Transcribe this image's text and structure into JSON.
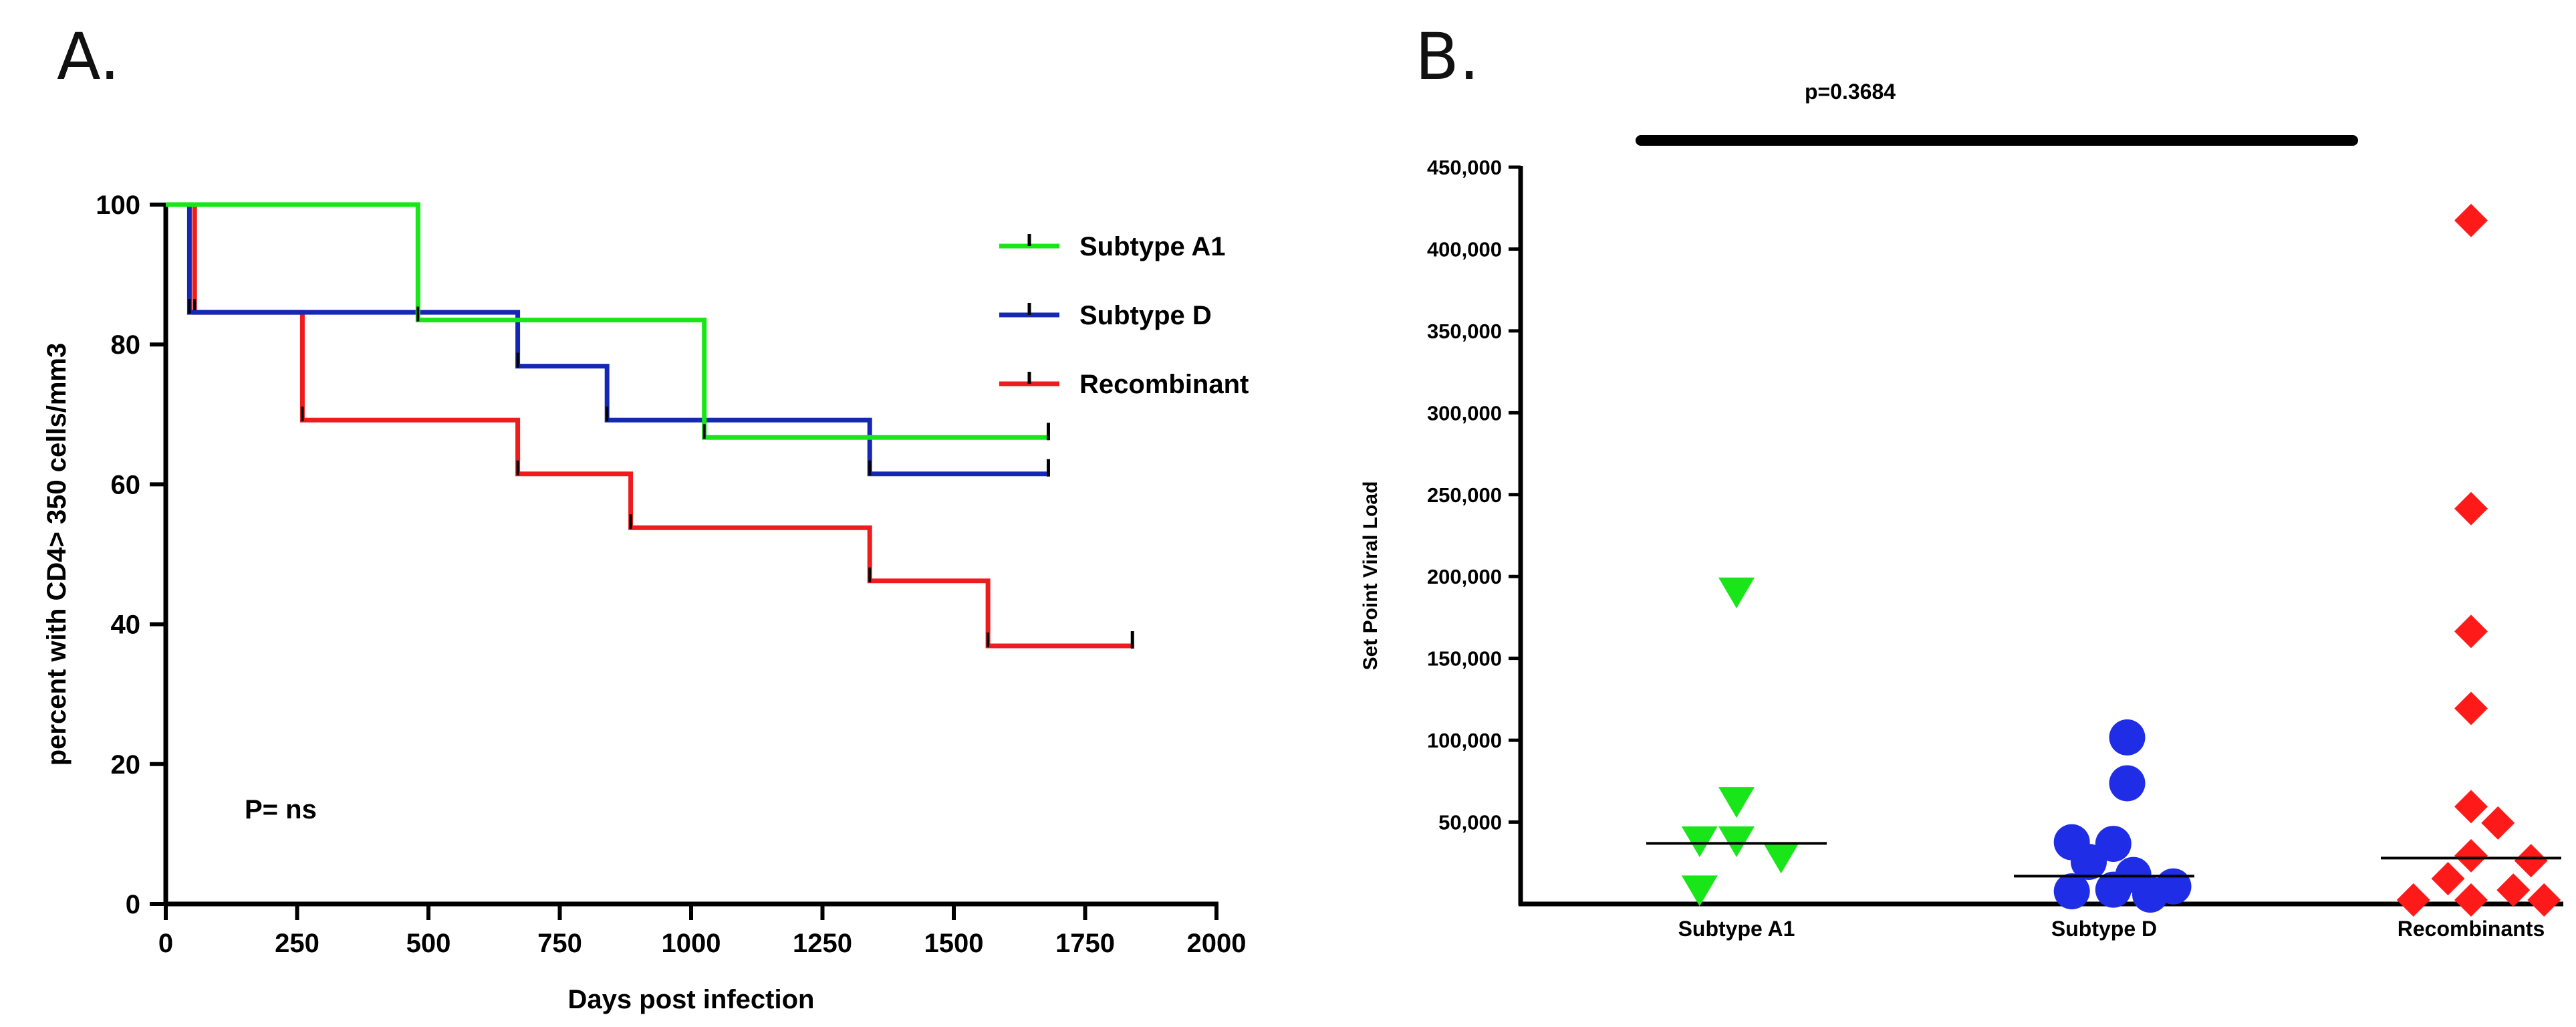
{
  "panels": {
    "a_label": "A.",
    "b_label": "B."
  },
  "chart_data": [
    {
      "type": "line",
      "subtype": "kaplan-meier step",
      "panel": "A",
      "title": "",
      "xlabel": "Days post infection",
      "ylabel": "percent with CD4> 350 cells/mm3",
      "xlim": [
        0,
        2000
      ],
      "ylim": [
        0,
        100
      ],
      "xticks": [
        0,
        250,
        500,
        750,
        1000,
        1250,
        1500,
        1750,
        2000
      ],
      "yticks": [
        0,
        20,
        40,
        60,
        80,
        100
      ],
      "grid": false,
      "legend_position": "top-right",
      "annotation": "P= ns",
      "series": [
        {
          "name": "Subtype A1",
          "color": "#19e619",
          "steps": [
            [
              0,
              100
            ],
            [
              480,
              100
            ],
            [
              480,
              83.5
            ],
            [
              1025,
              83.5
            ],
            [
              1025,
              66.7
            ],
            [
              1680,
              66.7
            ]
          ],
          "censor": [
            [
              1680,
              66.7
            ]
          ]
        },
        {
          "name": "Subtype D",
          "color": "#1428b4",
          "steps": [
            [
              0,
              100
            ],
            [
              45,
              100
            ],
            [
              45,
              84.6
            ],
            [
              670,
              84.6
            ],
            [
              670,
              76.9
            ],
            [
              840,
              76.9
            ],
            [
              840,
              69.2
            ],
            [
              1340,
              69.2
            ],
            [
              1340,
              61.5
            ],
            [
              1680,
              61.5
            ]
          ],
          "censor": [
            [
              1680,
              61.5
            ]
          ]
        },
        {
          "name": "Recombinant",
          "color": "#ee1c1c",
          "steps": [
            [
              0,
              100
            ],
            [
              55,
              100
            ],
            [
              55,
              84.6
            ],
            [
              260,
              84.6
            ],
            [
              260,
              69.2
            ],
            [
              670,
              69.2
            ],
            [
              670,
              61.5
            ],
            [
              885,
              61.5
            ],
            [
              885,
              53.8
            ],
            [
              1340,
              53.8
            ],
            [
              1340,
              46.2
            ],
            [
              1565,
              46.2
            ],
            [
              1565,
              36.9
            ],
            [
              1840,
              36.9
            ]
          ],
          "censor": [
            [
              1840,
              36.9
            ]
          ]
        }
      ]
    },
    {
      "type": "scatter",
      "subtype": "dot plot with median lines",
      "panel": "B",
      "title": "",
      "xlabel": "",
      "ylabel": "Set Point Viral Load",
      "categories": [
        "Subtype A1",
        "Subtype D",
        "Recombinants"
      ],
      "ylim": [
        0,
        450000
      ],
      "ytick_labels": [
        "50,000",
        "100,000",
        "150,000",
        "200,000",
        "250,000",
        "300,000",
        "350,000",
        "400,000",
        "450,000"
      ],
      "yticks": [
        50000,
        100000,
        150000,
        200000,
        250000,
        300000,
        350000,
        400000,
        450000
      ],
      "grid": false,
      "annotation": "p=0.3684",
      "series": [
        {
          "name": "Subtype A1",
          "marker": "triangle-down",
          "color": "#19e619",
          "median": 37000,
          "points": [
            {
              "x": 0.0,
              "y": 190000
            },
            {
              "x": 0.0,
              "y": 62000
            },
            {
              "x": 0.0,
              "y": 38000
            },
            {
              "x": -0.48,
              "y": 38000
            },
            {
              "x": 0.58,
              "y": 28000
            },
            {
              "x": -0.48,
              "y": 8000
            }
          ]
        },
        {
          "name": "Subtype D",
          "marker": "circle",
          "color": "#1f2ee6",
          "median": 17000,
          "points": [
            {
              "x": 0.3,
              "y": 96000
            },
            {
              "x": 0.3,
              "y": 68000
            },
            {
              "x": -0.42,
              "y": 32000
            },
            {
              "x": 0.12,
              "y": 31000
            },
            {
              "x": -0.2,
              "y": 20000
            },
            {
              "x": 0.38,
              "y": 12000
            },
            {
              "x": -0.42,
              "y": 2000
            },
            {
              "x": 0.12,
              "y": 3000
            },
            {
              "x": 0.6,
              "y": 0
            },
            {
              "x": 0.9,
              "y": 5000
            }
          ]
        },
        {
          "name": "Recombinants",
          "marker": "diamond",
          "color": "#ff1a1a",
          "median": 28000,
          "points": [
            {
              "x": 0.0,
              "y": 415000
            },
            {
              "x": 0.0,
              "y": 239000
            },
            {
              "x": 0.0,
              "y": 164000
            },
            {
              "x": 0.0,
              "y": 117000
            },
            {
              "x": 0.0,
              "y": 57000
            },
            {
              "x": 0.35,
              "y": 47000
            },
            {
              "x": 0.0,
              "y": 27000
            },
            {
              "x": 0.78,
              "y": 24000
            },
            {
              "x": -0.3,
              "y": 13000
            },
            {
              "x": 0.55,
              "y": 6000
            },
            {
              "x": -0.75,
              "y": 0
            },
            {
              "x": 0.0,
              "y": 0
            },
            {
              "x": 0.95,
              "y": 0
            }
          ]
        }
      ]
    }
  ]
}
